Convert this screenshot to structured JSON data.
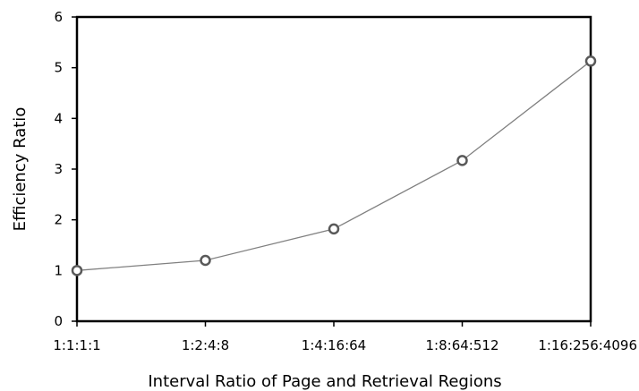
{
  "chart_data": {
    "type": "line",
    "title": "",
    "xlabel": "Interval Ratio of Page and Retrieval Regions",
    "ylabel": "Efficiency Ratio",
    "categories": [
      "1:1:1:1",
      "1:2:4:8",
      "1:4:16:64",
      "1:8:64:512",
      "1:16:256:4096"
    ],
    "series": [
      {
        "values": [
          1.0,
          1.2,
          1.82,
          3.17,
          5.13
        ]
      }
    ],
    "ylim": [
      0,
      6
    ],
    "yticks": [
      "0",
      "1",
      "2",
      "3",
      "4",
      "5",
      "6"
    ],
    "grid": false,
    "legend": "none",
    "colors": {
      "line": "#808080",
      "marker": "#595959",
      "axis": "#000000"
    }
  }
}
